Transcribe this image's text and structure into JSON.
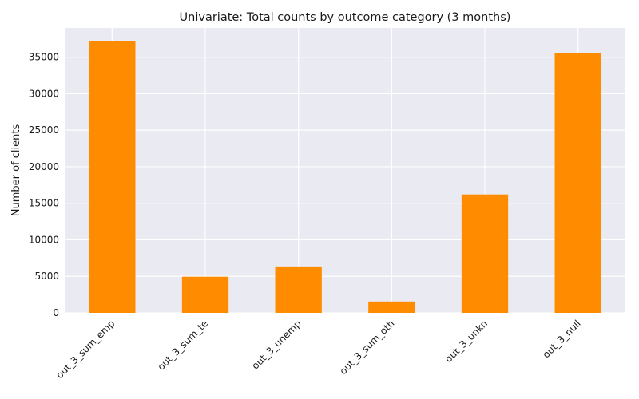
{
  "chart_data": {
    "type": "bar",
    "title": "Univariate: Total counts by outcome category (3 months)",
    "xlabel": "",
    "ylabel": "Number of clients",
    "categories": [
      "out_3_sum_emp",
      "out_3_sum_te",
      "out_3_unemp",
      "out_3_sum_oth",
      "out_3_unkn",
      "out_3_null"
    ],
    "values": [
      37200,
      4950,
      6350,
      1550,
      16200,
      35600
    ],
    "ylim": [
      0,
      39000
    ],
    "yticks": [
      0,
      5000,
      10000,
      15000,
      20000,
      25000,
      30000,
      35000
    ],
    "grid": true,
    "legend": "none",
    "bar_color": "#ff8c00",
    "background_color": "#eaeaf2",
    "grid_color": "#ffffff"
  }
}
